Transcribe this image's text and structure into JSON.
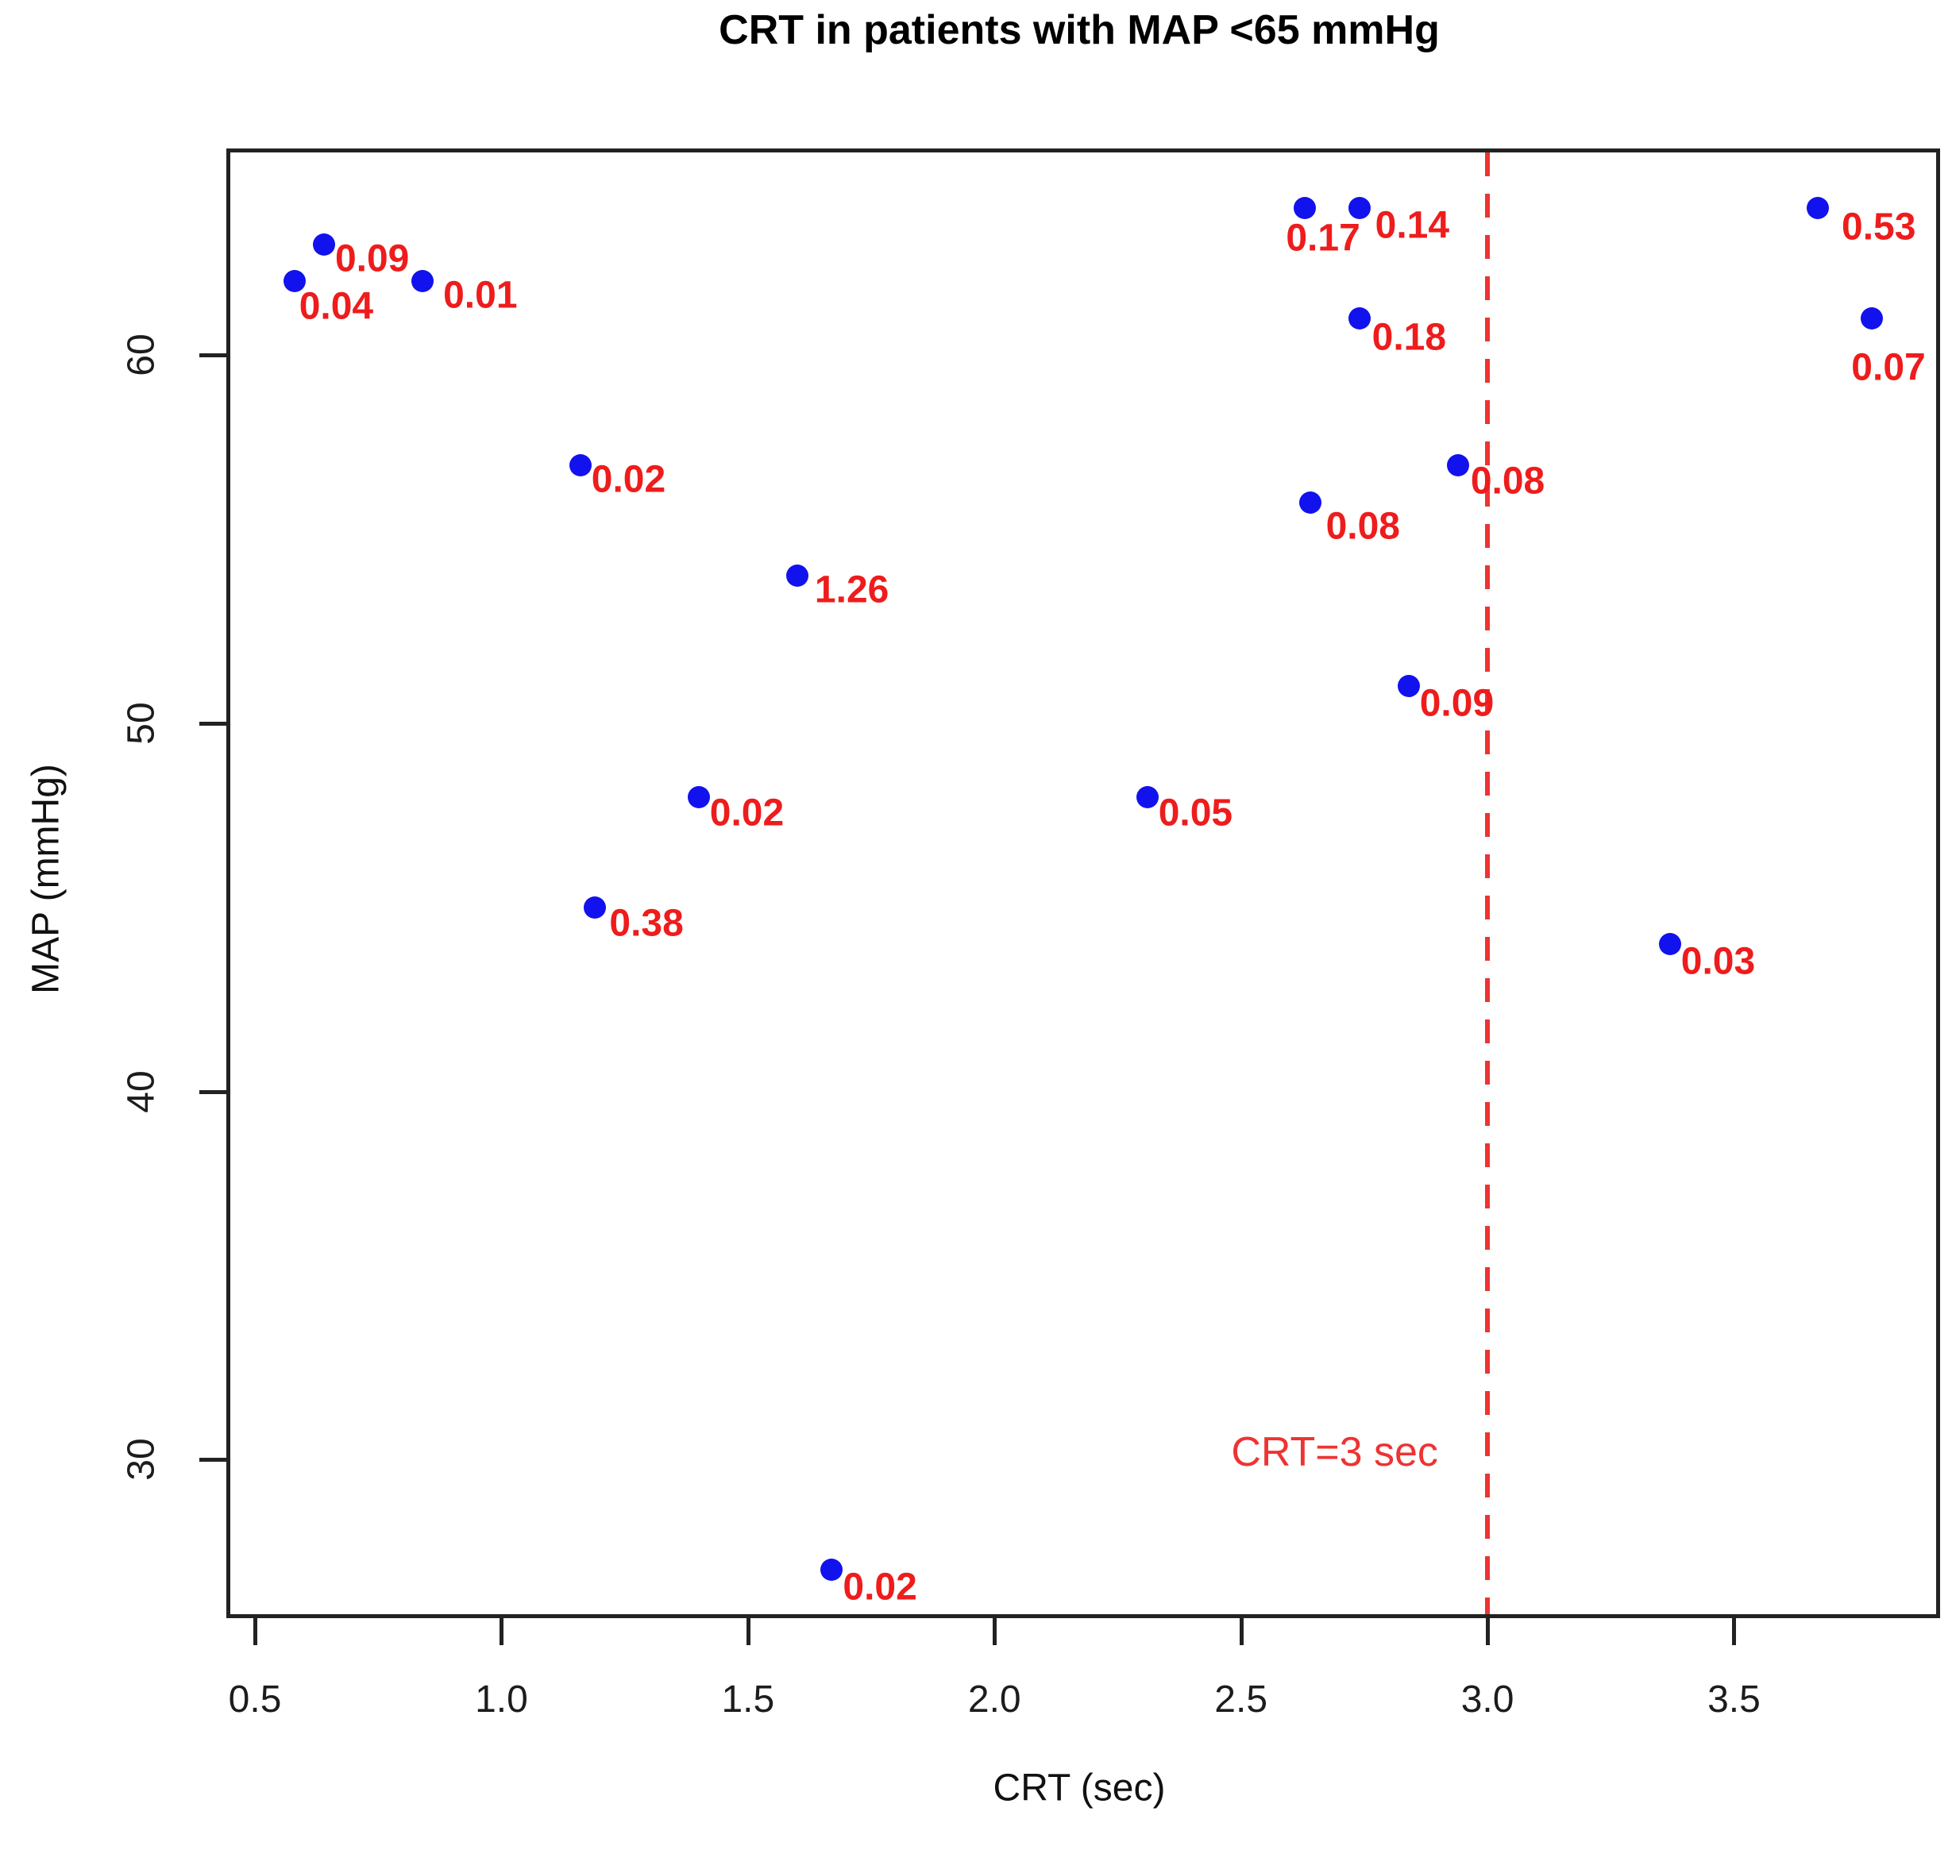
{
  "chart_data": {
    "type": "scatter",
    "title": "CRT in patients with MAP <65 mmHg",
    "xlabel": "CRT (sec)",
    "ylabel": "MAP (mmHg)",
    "xlim": [
      0.45,
      3.91
    ],
    "ylim": [
      25.8,
      65.5
    ],
    "x_ticks": [
      0.5,
      1.0,
      1.5,
      2.0,
      2.5,
      3.0,
      3.5
    ],
    "x_tick_labels": [
      "0.5",
      "1.0",
      "1.5",
      "2.0",
      "2.5",
      "3.0",
      "3.5"
    ],
    "y_ticks": [
      30,
      40,
      50,
      60
    ],
    "y_tick_labels": [
      "30",
      "40",
      "50",
      "60"
    ],
    "grid": false,
    "legend": "none",
    "point_color": "#1212ee",
    "point_label_color": "#ee1c1c",
    "refline": {
      "x": 3.0,
      "label": "CRT=3 sec",
      "color": "#ee3333",
      "style": "dashed",
      "label_x": 2.69,
      "label_y": 30.2
    },
    "points": [
      {
        "crt": 0.64,
        "map": 63,
        "label": "0.09",
        "lx": 14,
        "ly": 18
      },
      {
        "crt": 0.58,
        "map": 62,
        "label": "0.04",
        "lx": 6,
        "ly": 32
      },
      {
        "crt": 0.84,
        "map": 62,
        "label": "0.01",
        "lx": 26,
        "ly": 18
      },
      {
        "crt": 2.63,
        "map": 64,
        "label": "0.17",
        "lx": -24,
        "ly": 38
      },
      {
        "crt": 2.74,
        "map": 64,
        "label": "0.14",
        "lx": 20,
        "ly": 22
      },
      {
        "crt": 3.67,
        "map": 64,
        "label": "0.53",
        "lx": 30,
        "ly": 24
      },
      {
        "crt": 2.74,
        "map": 61,
        "label": "0.18",
        "lx": 16,
        "ly": 24
      },
      {
        "crt": 3.78,
        "map": 61,
        "label": "0.07",
        "lx": -26,
        "ly": 62
      },
      {
        "crt": 1.16,
        "map": 57,
        "label": "0.02",
        "lx": 14,
        "ly": 18
      },
      {
        "crt": 2.94,
        "map": 57,
        "label": "0.08",
        "lx": 16,
        "ly": 20
      },
      {
        "crt": 2.64,
        "map": 56,
        "label": "0.08",
        "lx": 20,
        "ly": 30
      },
      {
        "crt": 1.6,
        "map": 54,
        "label": "1.26",
        "lx": 22,
        "ly": 18
      },
      {
        "crt": 2.84,
        "map": 51,
        "label": "0.09",
        "lx": 14,
        "ly": 22
      },
      {
        "crt": 1.4,
        "map": 48,
        "label": "0.02",
        "lx": 14,
        "ly": 20
      },
      {
        "crt": 2.31,
        "map": 48,
        "label": "0.05",
        "lx": 14,
        "ly": 20
      },
      {
        "crt": 1.19,
        "map": 45,
        "label": "0.38",
        "lx": 18,
        "ly": 20
      },
      {
        "crt": 3.37,
        "map": 44,
        "label": "0.03",
        "lx": 14,
        "ly": 22
      },
      {
        "crt": 1.67,
        "map": 27,
        "label": "0.02",
        "lx": 14,
        "ly": 22
      }
    ]
  }
}
